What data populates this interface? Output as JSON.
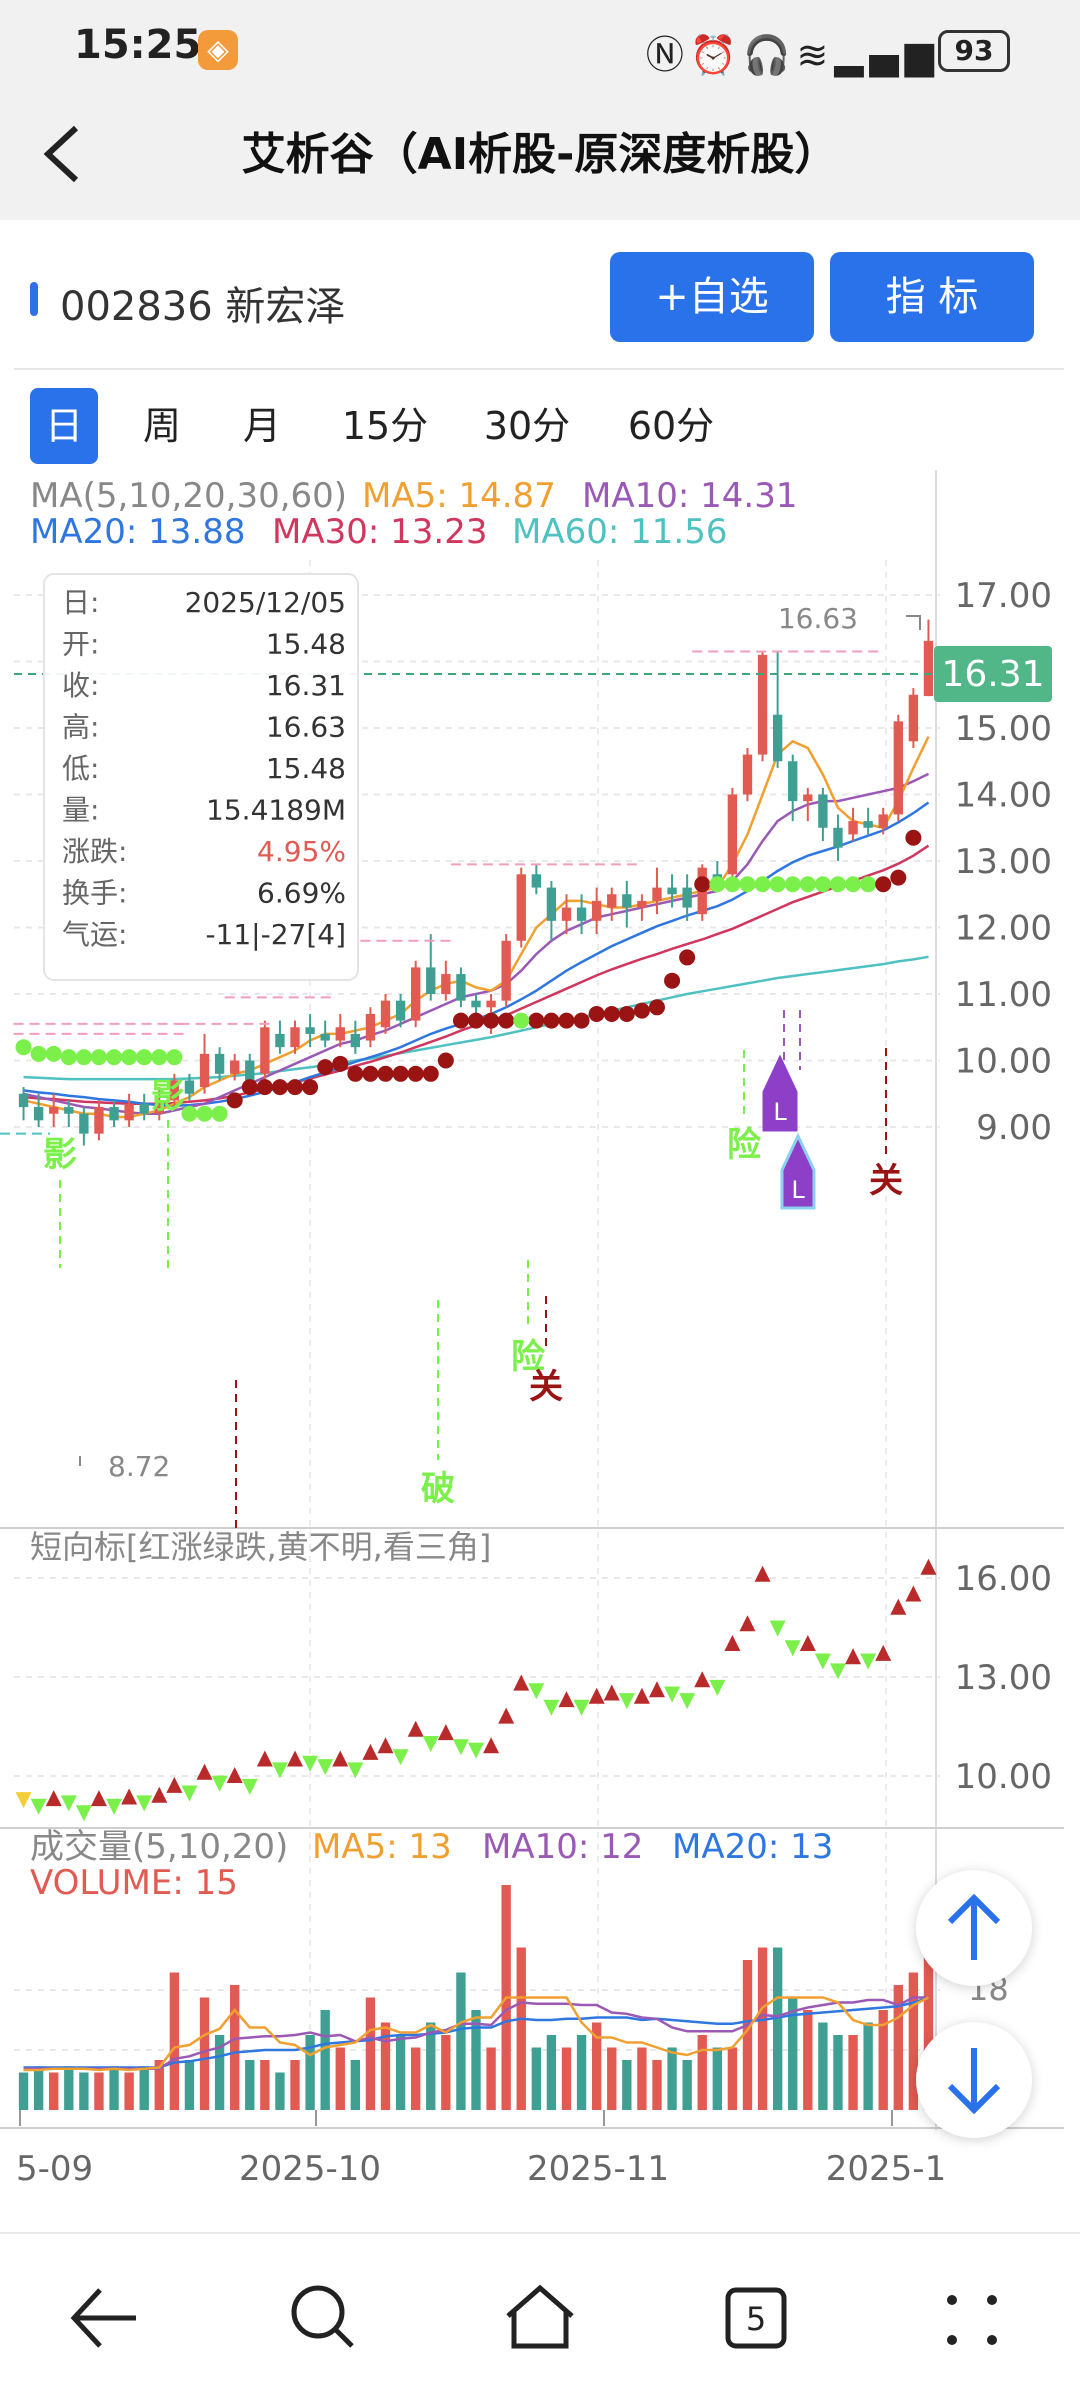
{
  "status_bar": {
    "time": "15:25",
    "battery": "93",
    "icons": [
      "nfc-icon",
      "alarm-icon",
      "headset-icon",
      "vibrate-icon",
      "wifi-icon",
      "5g-signal-icon"
    ]
  },
  "header": {
    "title": "艾析谷（AI析股-原深度析股）"
  },
  "stock": {
    "label": "002836 新宏泽"
  },
  "buttons": {
    "watchlist": "+自选",
    "indicator": "指  标"
  },
  "period_tabs": [
    {
      "label": "日",
      "active": true
    },
    {
      "label": "周",
      "active": false
    },
    {
      "label": "月",
      "active": false
    },
    {
      "label": "15分",
      "active": false
    },
    {
      "label": "30分",
      "active": false
    },
    {
      "label": "60分",
      "active": false
    }
  ],
  "ma_legend": {
    "title": "MA(5,10,20,30,60)",
    "ma5": "MA5: 14.87",
    "ma10": "MA10: 14.31",
    "ma20": "MA20: 13.88",
    "ma30": "MA30: 13.23",
    "ma60": "MA60: 11.56"
  },
  "info_box": {
    "rows": [
      {
        "k": "日:",
        "v": "2025/12/05"
      },
      {
        "k": "开:",
        "v": "15.48"
      },
      {
        "k": "收:",
        "v": "16.31"
      },
      {
        "k": "高:",
        "v": "16.63"
      },
      {
        "k": "低:",
        "v": "15.48"
      },
      {
        "k": "量:",
        "v": "15.4189M"
      },
      {
        "k": "涨跌:",
        "v": "4.95%"
      },
      {
        "k": "换手:",
        "v": "6.69%"
      },
      {
        "k": "气运:",
        "v": "-11|-27[4]"
      }
    ]
  },
  "price_axis": [
    "17.00",
    "16.00",
    "15.00",
    "14.00",
    "13.00",
    "12.00",
    "11.00",
    "10.00",
    "9.00"
  ],
  "current_price": "16.31",
  "high_label": "16.63",
  "low_label": "8.72",
  "signal_labels": {
    "ying": "影",
    "xian": "险",
    "guan": "关",
    "po": "破",
    "L": "L"
  },
  "short_indicator": {
    "title": "短向标[红涨绿跌,黄不明,看三角]",
    "axis": [
      "16.00",
      "13.00",
      "10.00"
    ]
  },
  "volume_panel": {
    "title": "成交量(5,10,20)",
    "ma5": "MA5: 13",
    "ma10": "MA10: 12",
    "ma20": "MA20: 13",
    "volume": "VOLUME: 15",
    "axis_partial": "18"
  },
  "x_axis": [
    "5-09",
    "2025-10",
    "2025-11",
    "2025-1"
  ],
  "colors": {
    "up": "#e15b52",
    "down": "#3f9f93",
    "ma5": "#f0a030",
    "ma10": "#9b59b6",
    "ma20": "#2f77e0",
    "ma30": "#d0365e",
    "ma60": "#4fc1c0",
    "accent": "#2a72ea",
    "price_tag": "#52b788",
    "green_dot": "#7cf04a",
    "red_dot": "#9a1414"
  },
  "chart_data": {
    "type": "candlestick",
    "y_range": [
      8.2,
      17.6
    ],
    "candles": [
      {
        "o": 9.5,
        "c": 9.3,
        "h": 9.6,
        "l": 9.1
      },
      {
        "o": 9.3,
        "c": 9.1,
        "h": 9.5,
        "l": 9.0
      },
      {
        "o": 9.2,
        "c": 9.3,
        "h": 9.5,
        "l": 9.0
      },
      {
        "o": 9.3,
        "c": 9.2,
        "h": 9.4,
        "l": 9.0
      },
      {
        "o": 9.2,
        "c": 8.9,
        "h": 9.3,
        "l": 8.72
      },
      {
        "o": 8.9,
        "c": 9.3,
        "h": 9.4,
        "l": 8.8
      },
      {
        "o": 9.3,
        "c": 9.1,
        "h": 9.4,
        "l": 9.0
      },
      {
        "o": 9.1,
        "c": 9.35,
        "h": 9.5,
        "l": 9.0
      },
      {
        "o": 9.35,
        "c": 9.2,
        "h": 9.5,
        "l": 9.1
      },
      {
        "o": 9.2,
        "c": 9.4,
        "h": 9.6,
        "l": 9.1
      },
      {
        "o": 9.4,
        "c": 9.7,
        "h": 9.8,
        "l": 9.3
      },
      {
        "o": 9.7,
        "c": 9.5,
        "h": 9.8,
        "l": 9.4
      },
      {
        "o": 9.6,
        "c": 10.1,
        "h": 10.4,
        "l": 9.5
      },
      {
        "o": 10.1,
        "c": 9.8,
        "h": 10.2,
        "l": 9.7
      },
      {
        "o": 9.8,
        "c": 10.0,
        "h": 10.1,
        "l": 9.7
      },
      {
        "o": 10.0,
        "c": 9.7,
        "h": 10.1,
        "l": 9.6
      },
      {
        "o": 9.8,
        "c": 10.5,
        "h": 10.6,
        "l": 9.7
      },
      {
        "o": 10.4,
        "c": 10.2,
        "h": 10.6,
        "l": 10.1
      },
      {
        "o": 10.2,
        "c": 10.5,
        "h": 10.6,
        "l": 10.1
      },
      {
        "o": 10.5,
        "c": 10.4,
        "h": 10.7,
        "l": 10.2
      },
      {
        "o": 10.4,
        "c": 10.3,
        "h": 10.6,
        "l": 10.2
      },
      {
        "o": 10.3,
        "c": 10.5,
        "h": 10.7,
        "l": 10.2
      },
      {
        "o": 10.4,
        "c": 10.2,
        "h": 10.6,
        "l": 10.1
      },
      {
        "o": 10.3,
        "c": 10.7,
        "h": 10.8,
        "l": 10.2
      },
      {
        "o": 10.5,
        "c": 10.9,
        "h": 11.0,
        "l": 10.4
      },
      {
        "o": 10.9,
        "c": 10.6,
        "h": 11.0,
        "l": 10.5
      },
      {
        "o": 10.6,
        "c": 11.4,
        "h": 11.5,
        "l": 10.5
      },
      {
        "o": 11.4,
        "c": 11.0,
        "h": 11.9,
        "l": 10.9
      },
      {
        "o": 11.0,
        "c": 11.3,
        "h": 11.5,
        "l": 10.9
      },
      {
        "o": 11.3,
        "c": 10.9,
        "h": 11.4,
        "l": 10.8
      },
      {
        "o": 10.9,
        "c": 10.8,
        "h": 11.0,
        "l": 10.7
      },
      {
        "o": 10.8,
        "c": 10.9,
        "h": 11.0,
        "l": 10.4
      },
      {
        "o": 10.9,
        "c": 11.8,
        "h": 11.9,
        "l": 10.8
      },
      {
        "o": 11.8,
        "c": 12.8,
        "h": 12.9,
        "l": 11.7
      },
      {
        "o": 12.8,
        "c": 12.6,
        "h": 12.95,
        "l": 12.5
      },
      {
        "o": 12.6,
        "c": 12.1,
        "h": 12.7,
        "l": 11.8
      },
      {
        "o": 12.1,
        "c": 12.3,
        "h": 12.5,
        "l": 11.9
      },
      {
        "o": 12.3,
        "c": 12.1,
        "h": 12.5,
        "l": 11.9
      },
      {
        "o": 12.1,
        "c": 12.4,
        "h": 12.6,
        "l": 11.9
      },
      {
        "o": 12.3,
        "c": 12.5,
        "h": 12.6,
        "l": 12.1
      },
      {
        "o": 12.5,
        "c": 12.3,
        "h": 12.7,
        "l": 12.0
      },
      {
        "o": 12.3,
        "c": 12.4,
        "h": 12.5,
        "l": 12.1
      },
      {
        "o": 12.4,
        "c": 12.6,
        "h": 12.9,
        "l": 12.2
      },
      {
        "o": 12.6,
        "c": 12.5,
        "h": 12.8,
        "l": 12.3
      },
      {
        "o": 12.6,
        "c": 12.3,
        "h": 12.8,
        "l": 12.1
      },
      {
        "o": 12.2,
        "c": 12.9,
        "h": 12.95,
        "l": 12.1
      },
      {
        "o": 12.8,
        "c": 12.7,
        "h": 13.0,
        "l": 12.6
      },
      {
        "o": 12.8,
        "c": 14.0,
        "h": 14.1,
        "l": 12.7
      },
      {
        "o": 14.0,
        "c": 14.6,
        "h": 14.7,
        "l": 13.9
      },
      {
        "o": 14.6,
        "c": 16.1,
        "h": 16.15,
        "l": 14.5
      },
      {
        "o": 15.2,
        "c": 14.5,
        "h": 16.15,
        "l": 14.4
      },
      {
        "o": 14.5,
        "c": 13.9,
        "h": 14.6,
        "l": 13.6
      },
      {
        "o": 13.9,
        "c": 14.0,
        "h": 14.1,
        "l": 13.6
      },
      {
        "o": 14.0,
        "c": 13.5,
        "h": 14.1,
        "l": 13.3
      },
      {
        "o": 13.5,
        "c": 13.2,
        "h": 13.7,
        "l": 13.0
      },
      {
        "o": 13.4,
        "c": 13.6,
        "h": 13.8,
        "l": 13.3
      },
      {
        "o": 13.6,
        "c": 13.5,
        "h": 13.8,
        "l": 13.4
      },
      {
        "o": 13.5,
        "c": 13.7,
        "h": 13.8,
        "l": 13.4
      },
      {
        "o": 13.7,
        "c": 15.1,
        "h": 15.2,
        "l": 13.6
      },
      {
        "o": 14.8,
        "c": 15.5,
        "h": 15.6,
        "l": 14.7
      },
      {
        "o": 15.48,
        "c": 16.31,
        "h": 16.63,
        "l": 15.48
      }
    ],
    "ma5": [
      9.4,
      9.35,
      9.3,
      9.25,
      9.2,
      9.2,
      9.15,
      9.15,
      9.2,
      9.25,
      9.35,
      9.45,
      9.6,
      9.7,
      9.8,
      9.85,
      9.95,
      10.05,
      10.15,
      10.3,
      10.4,
      10.4,
      10.45,
      10.5,
      10.6,
      10.7,
      10.9,
      11.05,
      11.15,
      11.2,
      11.1,
      11.05,
      11.2,
      11.6,
      12.0,
      12.2,
      12.4,
      12.4,
      12.35,
      12.3,
      12.3,
      12.35,
      12.4,
      12.45,
      12.5,
      12.55,
      12.6,
      12.95,
      13.4,
      14.0,
      14.6,
      14.8,
      14.7,
      14.3,
      13.8,
      13.6,
      13.55,
      13.5,
      13.9,
      14.4,
      14.87
    ],
    "ma10": [
      9.5,
      9.45,
      9.4,
      9.35,
      9.3,
      9.28,
      9.25,
      9.22,
      9.2,
      9.2,
      9.25,
      9.3,
      9.35,
      9.45,
      9.55,
      9.65,
      9.75,
      9.85,
      9.95,
      10.05,
      10.15,
      10.25,
      10.3,
      10.38,
      10.45,
      10.55,
      10.65,
      10.75,
      10.85,
      10.95,
      11.0,
      11.05,
      11.15,
      11.35,
      11.6,
      11.8,
      11.95,
      12.05,
      12.15,
      12.2,
      12.25,
      12.3,
      12.35,
      12.4,
      12.45,
      12.5,
      12.55,
      12.7,
      12.95,
      13.3,
      13.6,
      13.75,
      13.85,
      13.9,
      13.9,
      13.95,
      14.0,
      14.05,
      14.1,
      14.2,
      14.31
    ],
    "ma20": [
      9.55,
      9.52,
      9.5,
      9.47,
      9.45,
      9.42,
      9.4,
      9.38,
      9.35,
      9.33,
      9.32,
      9.33,
      9.35,
      9.38,
      9.42,
      9.47,
      9.53,
      9.6,
      9.67,
      9.75,
      9.82,
      9.9,
      9.98,
      10.05,
      10.12,
      10.2,
      10.3,
      10.4,
      10.48,
      10.55,
      10.62,
      10.7,
      10.8,
      10.92,
      11.05,
      11.2,
      11.35,
      11.48,
      11.6,
      11.72,
      11.82,
      11.92,
      12.02,
      12.1,
      12.18,
      12.25,
      12.32,
      12.42,
      12.55,
      12.7,
      12.85,
      12.98,
      13.08,
      13.15,
      13.22,
      13.3,
      13.38,
      13.46,
      13.58,
      13.72,
      13.88
    ],
    "ma30": [
      9.45,
      9.43,
      9.42,
      9.4,
      9.38,
      9.37,
      9.36,
      9.35,
      9.35,
      9.35,
      9.36,
      9.38,
      9.4,
      9.43,
      9.47,
      9.52,
      9.57,
      9.62,
      9.67,
      9.73,
      9.79,
      9.85,
      9.92,
      9.98,
      10.05,
      10.12,
      10.2,
      10.28,
      10.36,
      10.45,
      10.53,
      10.6,
      10.68,
      10.78,
      10.88,
      10.98,
      11.08,
      11.18,
      11.28,
      11.37,
      11.45,
      11.53,
      11.6,
      11.68,
      11.75,
      11.82,
      11.9,
      11.98,
      12.08,
      12.18,
      12.28,
      12.38,
      12.46,
      12.54,
      12.62,
      12.7,
      12.78,
      12.86,
      12.96,
      13.08,
      13.23
    ],
    "ma60": [
      9.75,
      9.74,
      9.73,
      9.72,
      9.72,
      9.72,
      9.72,
      9.72,
      9.72,
      9.72,
      9.72,
      9.73,
      9.74,
      9.75,
      9.77,
      9.79,
      9.81,
      9.84,
      9.87,
      9.9,
      9.93,
      9.96,
      10.0,
      10.03,
      10.07,
      10.11,
      10.15,
      10.19,
      10.23,
      10.27,
      10.31,
      10.35,
      10.4,
      10.45,
      10.5,
      10.55,
      10.6,
      10.65,
      10.7,
      10.75,
      10.8,
      10.85,
      10.9,
      10.95,
      11.0,
      11.04,
      11.08,
      11.12,
      11.16,
      11.2,
      11.24,
      11.27,
      11.3,
      11.33,
      11.36,
      11.39,
      11.42,
      11.45,
      11.49,
      11.52,
      11.56
    ],
    "volume": [
      3,
      3.5,
      3,
      3.5,
      3,
      3,
      3.5,
      3,
      3.5,
      4,
      11,
      4,
      9,
      6,
      10,
      4,
      4,
      3,
      4,
      6,
      8,
      5,
      4,
      9,
      7,
      6,
      5,
      7,
      6,
      11,
      8,
      5,
      18,
      13,
      5,
      6,
      5,
      6,
      7,
      5,
      4,
      5,
      4,
      5,
      4,
      6,
      5,
      5,
      12,
      13,
      13,
      9,
      8,
      7,
      6,
      6,
      7,
      8,
      10,
      11,
      15
    ],
    "volume_ma5": [
      3.2,
      3.2,
      3.3,
      3.3,
      3.3,
      3.2,
      3.3,
      3.2,
      3.3,
      3.4,
      5,
      5.2,
      6,
      6.5,
      8,
      6.6,
      6.6,
      5.4,
      5.2,
      4.4,
      5,
      5.2,
      5.4,
      6.4,
      6.6,
      6.2,
      6.2,
      6.8,
      6.2,
      7,
      7.4,
      7.4,
      9.6,
      11,
      10,
      9.4,
      9,
      7,
      5.8,
      5.8,
      5.4,
      5.4,
      5,
      4.6,
      4.4,
      4.8,
      4.8,
      5,
      6.4,
      8.2,
      9.6,
      10.4,
      11,
      10,
      8.6,
      7.2,
      6.8,
      6.8,
      7.4,
      8.4,
      13
    ],
    "volume_ma10": [
      3.3,
      3.3,
      3.3,
      3.3,
      3.3,
      3.3,
      3.3,
      3.3,
      3.3,
      3.3,
      4.1,
      4.3,
      4.7,
      5,
      5.7,
      5.8,
      5.9,
      5.9,
      6,
      6.2,
      5.9,
      6,
      5.5,
      5.8,
      5.5,
      5.7,
      5.8,
      6.2,
      6.4,
      6.9,
      6.9,
      6.8,
      8,
      8.6,
      8.5,
      8.5,
      8.5,
      8.4,
      8.4,
      7.8,
      7.7,
      7.4,
      7.3,
      6.6,
      6.3,
      6.3,
      6.3,
      6.3,
      6.8,
      7.6,
      7.5,
      7.9,
      8.2,
      8.4,
      8.6,
      8.6,
      8.8,
      8.8,
      8.4,
      9,
      12
    ],
    "volume_ma20": [
      3.4,
      3.4,
      3.4,
      3.4,
      3.4,
      3.4,
      3.4,
      3.4,
      3.4,
      3.4,
      3.8,
      3.9,
      4.1,
      4.3,
      4.6,
      4.7,
      4.8,
      4.8,
      4.8,
      5.0,
      5.3,
      5.4,
      5.5,
      5.6,
      5.9,
      6,
      6,
      6.1,
      6.2,
      6.5,
      6.6,
      6.6,
      7.1,
      7.3,
      7.2,
      7.2,
      7.3,
      7.3,
      7.4,
      7.4,
      7.4,
      7.2,
      7.3,
      7.2,
      7.1,
      7.0,
      6.9,
      6.9,
      7.1,
      7.2,
      7.4,
      7.6,
      7.7,
      7.8,
      7.9,
      8.0,
      8.1,
      8.2,
      8.3,
      8.6,
      13
    ]
  }
}
